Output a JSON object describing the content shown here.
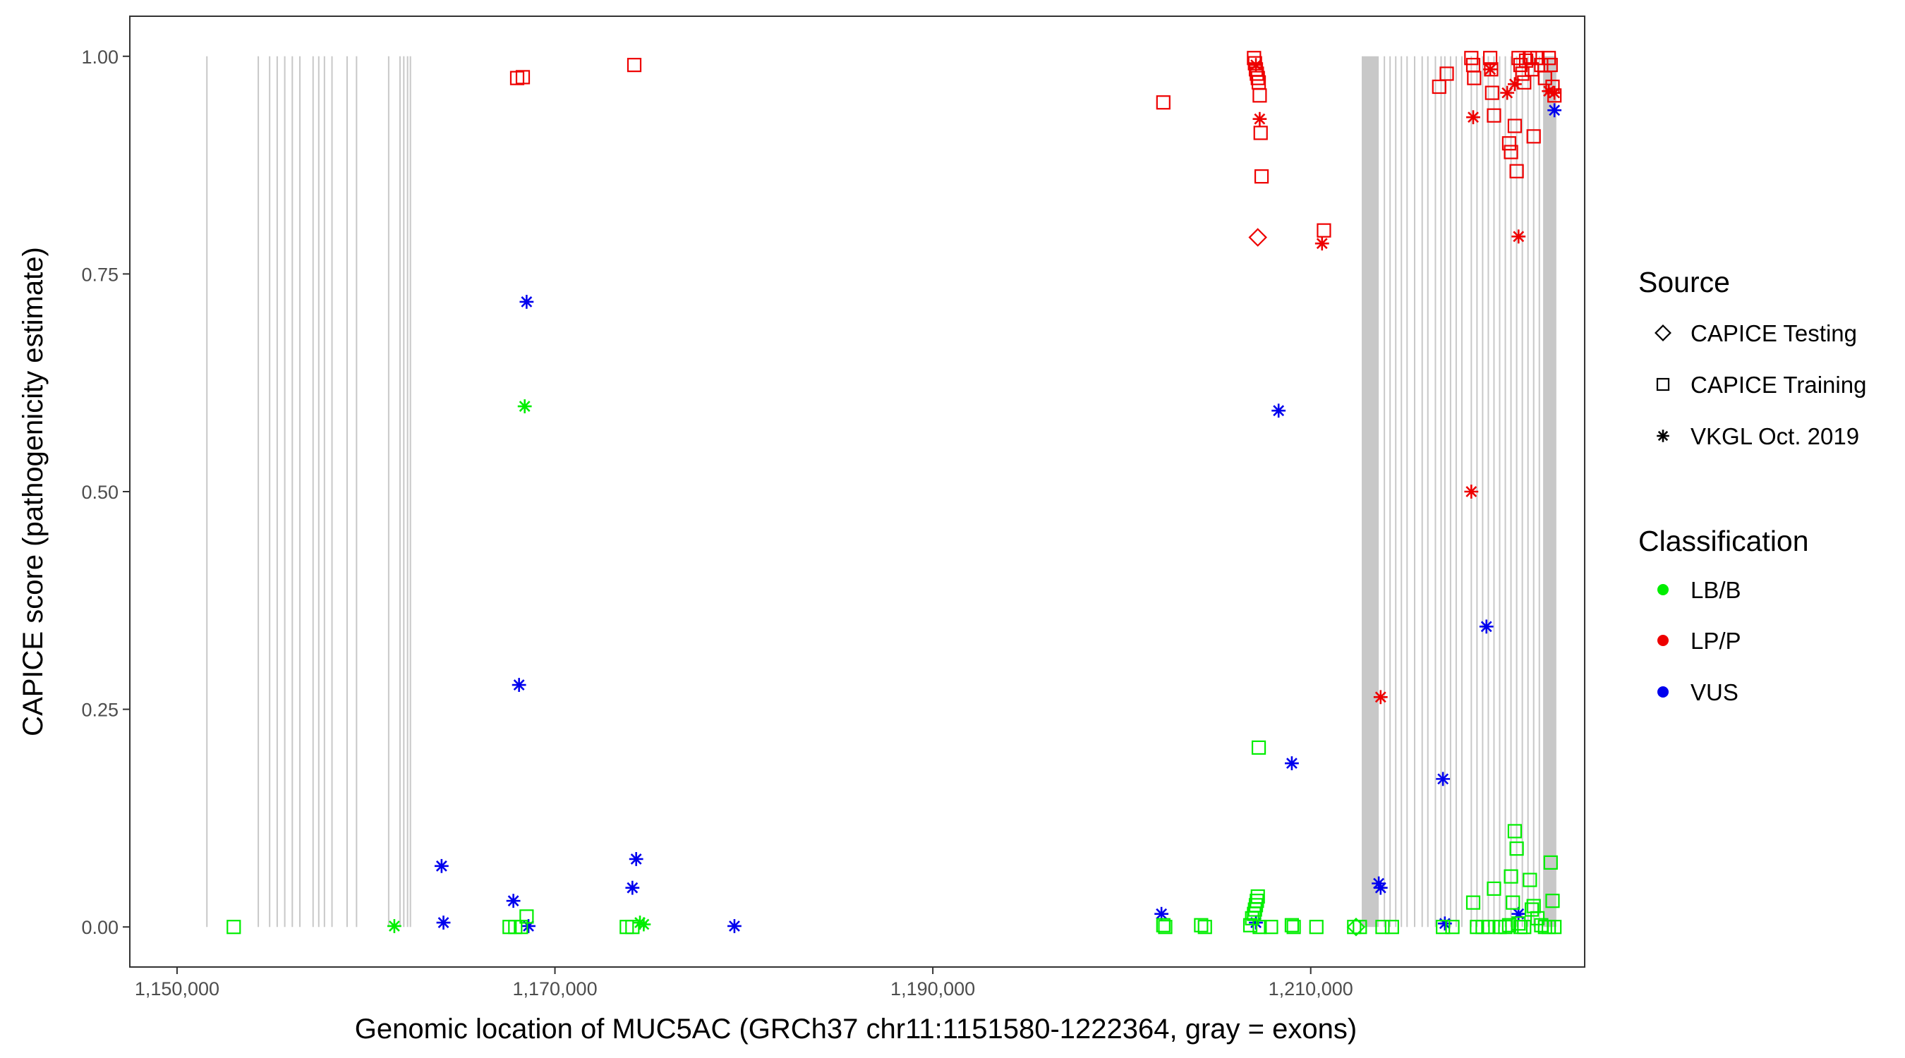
{
  "chart_data": {
    "type": "scatter",
    "xlabel": "Genomic location of MUC5AC (GRCh37 chr11:1151580-1222364, gray = exons)",
    "ylabel": "CAPICE score (pathogenicity estimate)",
    "xlim": [
      1147500,
      1224500
    ],
    "ylim": [
      -0.046,
      1.046
    ],
    "x_ticks": [
      1150000,
      1170000,
      1190000,
      1210000
    ],
    "x_tick_labels": [
      "1,150,000",
      "1,170,000",
      "1,190,000",
      "1,210,000"
    ],
    "y_ticks": [
      0,
      0.25,
      0.5,
      0.75,
      1
    ],
    "y_tick_labels": [
      "0.00",
      "0.25",
      "0.50",
      "0.75",
      "1.00"
    ],
    "grid": false,
    "exons": [
      1151580,
      1154300,
      1154900,
      1155300,
      1155700,
      1156100,
      1156500,
      1157200,
      1157500,
      1157800,
      1158200,
      1159000,
      1159500,
      1161200,
      1161800,
      1162000,
      1162200,
      1162350,
      [
        1212700,
        1213600
      ],
      1213900,
      1214200,
      1214500,
      1214800,
      1215100,
      1215500,
      1215900,
      1216200,
      1216600,
      1216900,
      1217100,
      1217400,
      1217700,
      1218000,
      1218500,
      1218800,
      1219100,
      1219400,
      1219700,
      1220000,
      1220300,
      1220600,
      1220900,
      1221200,
      1221500,
      1221800,
      1222100,
      [
        1222300,
        1223000
      ]
    ],
    "legend": {
      "position": "right",
      "source_title": "Source",
      "source_entries": [
        {
          "label": "CAPICE Testing",
          "shape": "diamond"
        },
        {
          "label": "CAPICE Training",
          "shape": "square"
        },
        {
          "label": "VKGL Oct. 2019",
          "shape": "asterisk"
        }
      ],
      "class_title": "Classification",
      "class_entries": [
        {
          "label": "LB/B",
          "color": "#00ee00"
        },
        {
          "label": "LP/P",
          "color": "#ee0000"
        },
        {
          "label": "VUS",
          "color": "#0000ee"
        }
      ]
    },
    "series": [
      {
        "source": "CAPICE Training",
        "shape": "square",
        "classification": "LP/P",
        "color": "#ee0000",
        "points": [
          [
            1168000,
            0.975
          ],
          [
            1168300,
            0.976
          ],
          [
            1174200,
            0.99
          ],
          [
            1202200,
            0.947
          ],
          [
            1207000,
            0.998
          ],
          [
            1207050,
            0.992
          ],
          [
            1207100,
            0.985
          ],
          [
            1207150,
            0.98
          ],
          [
            1207200,
            0.975
          ],
          [
            1207250,
            0.97
          ],
          [
            1207300,
            0.955
          ],
          [
            1207350,
            0.912
          ],
          [
            1207400,
            0.862
          ],
          [
            1210700,
            0.8
          ],
          [
            1216800,
            0.965
          ],
          [
            1217200,
            0.98
          ],
          [
            1218500,
            0.998
          ],
          [
            1218600,
            0.99
          ],
          [
            1218650,
            0.975
          ],
          [
            1219500,
            0.998
          ],
          [
            1219550,
            0.985
          ],
          [
            1219600,
            0.958
          ],
          [
            1219700,
            0.932
          ],
          [
            1220500,
            0.9
          ],
          [
            1220600,
            0.89
          ],
          [
            1220800,
            0.92
          ],
          [
            1220900,
            0.868
          ],
          [
            1221000,
            0.998
          ],
          [
            1221100,
            0.99
          ],
          [
            1221200,
            0.98
          ],
          [
            1221300,
            0.97
          ],
          [
            1221400,
            0.995
          ],
          [
            1221600,
            0.998
          ],
          [
            1221700,
            0.985
          ],
          [
            1221800,
            0.908
          ],
          [
            1222000,
            0.998
          ],
          [
            1222200,
            0.99
          ],
          [
            1222400,
            0.975
          ],
          [
            1222600,
            0.998
          ],
          [
            1222700,
            0.99
          ],
          [
            1222800,
            0.965
          ],
          [
            1222900,
            0.955
          ]
        ]
      },
      {
        "source": "CAPICE Testing",
        "shape": "diamond",
        "classification": "LP/P",
        "color": "#ee0000",
        "points": [
          [
            1207200,
            0.792
          ]
        ]
      },
      {
        "source": "VKGL Oct. 2019",
        "shape": "asterisk",
        "classification": "LP/P",
        "color": "#ee0000",
        "points": [
          [
            1207300,
            0.928
          ],
          [
            1207100,
            0.99
          ],
          [
            1210600,
            0.785
          ],
          [
            1213700,
            0.264
          ],
          [
            1218500,
            0.5
          ],
          [
            1218600,
            0.93
          ],
          [
            1219500,
            0.985
          ],
          [
            1220400,
            0.958
          ],
          [
            1220800,
            0.968
          ],
          [
            1221000,
            0.793
          ],
          [
            1222600,
            0.96
          ],
          [
            1222900,
            0.958
          ]
        ]
      },
      {
        "source": "VKGL Oct. 2019",
        "shape": "asterisk",
        "classification": "VUS",
        "color": "#0000ee",
        "points": [
          [
            1164000,
            0.07
          ],
          [
            1164100,
            0.005
          ],
          [
            1167800,
            0.03
          ],
          [
            1168100,
            0.278
          ],
          [
            1168500,
            0.718
          ],
          [
            1168600,
            0.001
          ],
          [
            1174100,
            0.045
          ],
          [
            1174300,
            0.078
          ],
          [
            1179500,
            0.001
          ],
          [
            1202100,
            0.015
          ],
          [
            1207100,
            0.005
          ],
          [
            1208300,
            0.593
          ],
          [
            1209000,
            0.188
          ],
          [
            1213600,
            0.05
          ],
          [
            1213700,
            0.045
          ],
          [
            1217000,
            0.17
          ],
          [
            1217100,
            0.004
          ],
          [
            1219300,
            0.345
          ],
          [
            1221000,
            0.015
          ],
          [
            1222900,
            0.938
          ]
        ]
      },
      {
        "source": "VKGL Oct. 2019",
        "shape": "asterisk",
        "classification": "LB/B",
        "color": "#00ee00",
        "points": [
          [
            1161500,
            0.001
          ],
          [
            1168400,
            0.598
          ],
          [
            1174500,
            0.005
          ],
          [
            1174700,
            0.003
          ]
        ]
      },
      {
        "source": "CAPICE Training",
        "shape": "square",
        "classification": "LB/B",
        "color": "#00ee00",
        "points": [
          [
            1153000,
            0.0
          ],
          [
            1167600,
            0.0
          ],
          [
            1167900,
            0.0
          ],
          [
            1168200,
            0.0
          ],
          [
            1168500,
            0.012
          ],
          [
            1173800,
            0.0
          ],
          [
            1174100,
            0.0
          ],
          [
            1202200,
            0.002
          ],
          [
            1202300,
            0.0
          ],
          [
            1204200,
            0.002
          ],
          [
            1204400,
            0.0
          ],
          [
            1206800,
            0.002
          ],
          [
            1206900,
            0.01
          ],
          [
            1207000,
            0.015
          ],
          [
            1207050,
            0.02
          ],
          [
            1207100,
            0.025
          ],
          [
            1207150,
            0.03
          ],
          [
            1207200,
            0.035
          ],
          [
            1207250,
            0.206
          ],
          [
            1207300,
            0.0
          ],
          [
            1207900,
            0.0
          ],
          [
            1209000,
            0.002
          ],
          [
            1209100,
            0.0
          ],
          [
            1210300,
            0.0
          ],
          [
            1212300,
            0.0
          ],
          [
            1212600,
            0.0
          ],
          [
            1213800,
            0.0
          ],
          [
            1214300,
            0.0
          ],
          [
            1217000,
            0.0
          ],
          [
            1217500,
            0.0
          ],
          [
            1218600,
            0.028
          ],
          [
            1218800,
            0.0
          ],
          [
            1219100,
            0.0
          ],
          [
            1219400,
            0.0
          ],
          [
            1219700,
            0.044
          ],
          [
            1220000,
            0.0
          ],
          [
            1220300,
            0.0
          ],
          [
            1220500,
            0.002
          ],
          [
            1220600,
            0.058
          ],
          [
            1220700,
            0.028
          ],
          [
            1220800,
            0.11
          ],
          [
            1220900,
            0.09
          ],
          [
            1221000,
            0.004
          ],
          [
            1221100,
            0.0
          ],
          [
            1221300,
            0.0
          ],
          [
            1221600,
            0.054
          ],
          [
            1221700,
            0.02
          ],
          [
            1221800,
            0.024
          ],
          [
            1222000,
            0.01
          ],
          [
            1222200,
            0.002
          ],
          [
            1222400,
            0.0
          ],
          [
            1222600,
            0.0
          ],
          [
            1222700,
            0.074
          ],
          [
            1222800,
            0.03
          ],
          [
            1222900,
            0.0
          ]
        ]
      },
      {
        "source": "CAPICE Testing",
        "shape": "diamond",
        "classification": "LB/B",
        "color": "#00ee00",
        "points": [
          [
            1212400,
            0.0
          ]
        ]
      }
    ]
  }
}
